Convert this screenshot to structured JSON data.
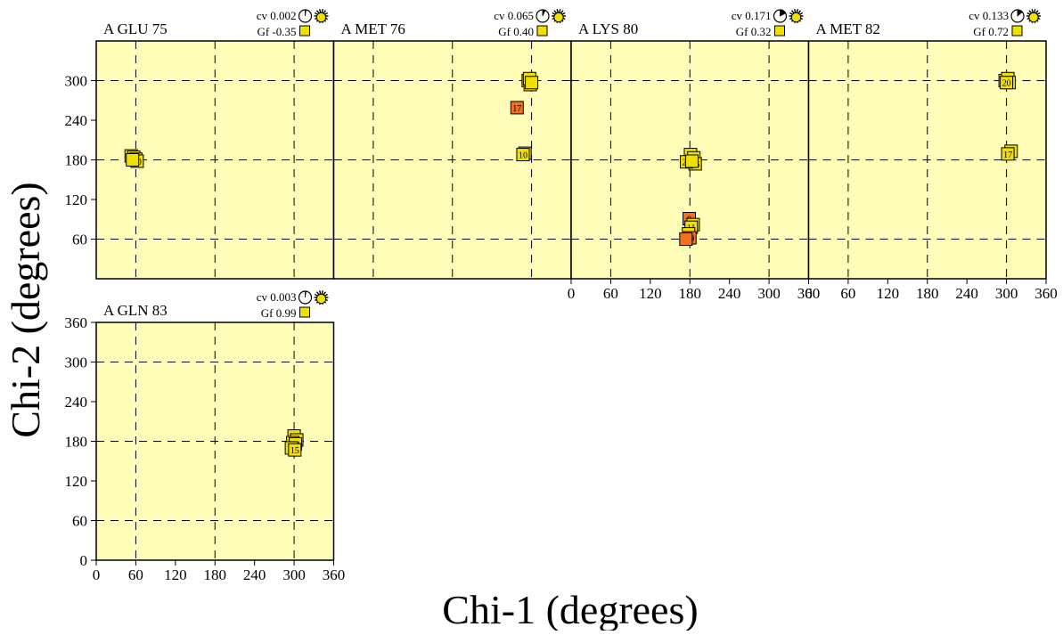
{
  "figure": {
    "x_axis_title": "Chi-1 (degrees)",
    "y_axis_title": "Chi-2 (degrees)"
  },
  "chart_data": {
    "type": "scatter",
    "xlabel": "Chi-1 (degrees)",
    "ylabel": "Chi-2 (degrees)",
    "xlim": [
      0,
      360
    ],
    "ylim": [
      0,
      360
    ],
    "x_ticks": [
      "0",
      "60",
      "120",
      "180",
      "240",
      "300",
      "360"
    ],
    "y_ticks": [
      "0",
      "60",
      "120",
      "180",
      "240",
      "300",
      "360"
    ],
    "grid": "dashed at 60, 180, 300",
    "panels": [
      {
        "title": "A GLU 75",
        "cv_text": "cv 0.002",
        "gf_text": "Gf -0.35",
        "cv_pie": 0.002,
        "gf_color": "#f0e000",
        "points": [
          {
            "x": 53,
            "y": 186,
            "label": "",
            "color": "#f0e000"
          },
          {
            "x": 57,
            "y": 184,
            "label": "18",
            "color": "#f0e000"
          },
          {
            "x": 60,
            "y": 181,
            "label": "",
            "color": "#f0e000"
          },
          {
            "x": 62,
            "y": 178,
            "label": "20",
            "color": "#f0e000"
          },
          {
            "x": 55,
            "y": 180,
            "label": "",
            "color": "#f0e000"
          }
        ]
      },
      {
        "title": "A MET 76",
        "cv_text": "cv 0.065",
        "gf_text": "Gf  0.40",
        "cv_pie": 0.065,
        "gf_color": "#f0e000",
        "points": [
          {
            "x": 295,
            "y": 300,
            "label": "",
            "color": "#f0e000"
          },
          {
            "x": 298,
            "y": 294,
            "label": "",
            "color": "#f0e000"
          },
          {
            "x": 297,
            "y": 303,
            "label": "20",
            "color": "#f0e000"
          },
          {
            "x": 300,
            "y": 297,
            "label": "",
            "color": "#f0e000"
          },
          {
            "x": 278,
            "y": 259,
            "label": "17",
            "color": "#f07020"
          },
          {
            "x": 290,
            "y": 190,
            "label": "",
            "color": "#f0e000"
          },
          {
            "x": 287,
            "y": 188,
            "label": "10",
            "color": "#f0e000"
          }
        ]
      },
      {
        "title": "A LYS 80",
        "cv_text": "cv 0.171",
        "gf_text": "Gf  0.32",
        "cv_pie": 0.171,
        "gf_color": "#f0e000",
        "points": [
          {
            "x": 181,
            "y": 188,
            "label": "",
            "color": "#f0e000"
          },
          {
            "x": 186,
            "y": 183,
            "label": "",
            "color": "#f0e000"
          },
          {
            "x": 188,
            "y": 174,
            "label": "16",
            "color": "#f0e000"
          },
          {
            "x": 175,
            "y": 177,
            "label": "20",
            "color": "#f0e000"
          },
          {
            "x": 183,
            "y": 178,
            "label": "",
            "color": "#f0e000"
          },
          {
            "x": 179,
            "y": 91,
            "label": "8",
            "color": "#f07020"
          },
          {
            "x": 185,
            "y": 82,
            "label": "",
            "color": "#f0e000"
          },
          {
            "x": 182,
            "y": 78,
            "label": "11",
            "color": "#f0e000"
          },
          {
            "x": 178,
            "y": 68,
            "label": "",
            "color": "#f0e000"
          },
          {
            "x": 180,
            "y": 62,
            "label": "19",
            "color": "#f07020"
          },
          {
            "x": 174,
            "y": 60,
            "label": "",
            "color": "#f07020"
          }
        ]
      },
      {
        "title": "A MET 82",
        "cv_text": "cv 0.133",
        "gf_text": "Gf  0.72",
        "cv_pie": 0.133,
        "gf_color": "#f0e000",
        "points": [
          {
            "x": 298,
            "y": 300,
            "label": "",
            "color": "#f0e000"
          },
          {
            "x": 302,
            "y": 303,
            "label": "",
            "color": "#f0e000"
          },
          {
            "x": 304,
            "y": 297,
            "label": "",
            "color": "#f0e000"
          },
          {
            "x": 300,
            "y": 297,
            "label": "20",
            "color": "#f0e000"
          },
          {
            "x": 307,
            "y": 193,
            "label": "",
            "color": "#f0e000"
          },
          {
            "x": 302,
            "y": 189,
            "label": "17",
            "color": "#f0e000"
          }
        ]
      },
      {
        "title": "A GLN 83",
        "cv_text": "cv 0.003",
        "gf_text": "Gf  0.99",
        "cv_pie": 0.003,
        "gf_color": "#f0e000",
        "points": [
          {
            "x": 300,
            "y": 188,
            "label": "19",
            "color": "#f0e000"
          },
          {
            "x": 304,
            "y": 182,
            "label": "",
            "color": "#f0e000"
          },
          {
            "x": 298,
            "y": 178,
            "label": "",
            "color": "#f0e000"
          },
          {
            "x": 302,
            "y": 176,
            "label": "20",
            "color": "#f0e000"
          },
          {
            "x": 296,
            "y": 170,
            "label": "",
            "color": "#f0e000"
          },
          {
            "x": 301,
            "y": 167,
            "label": "15",
            "color": "#f0e000"
          }
        ]
      }
    ]
  }
}
